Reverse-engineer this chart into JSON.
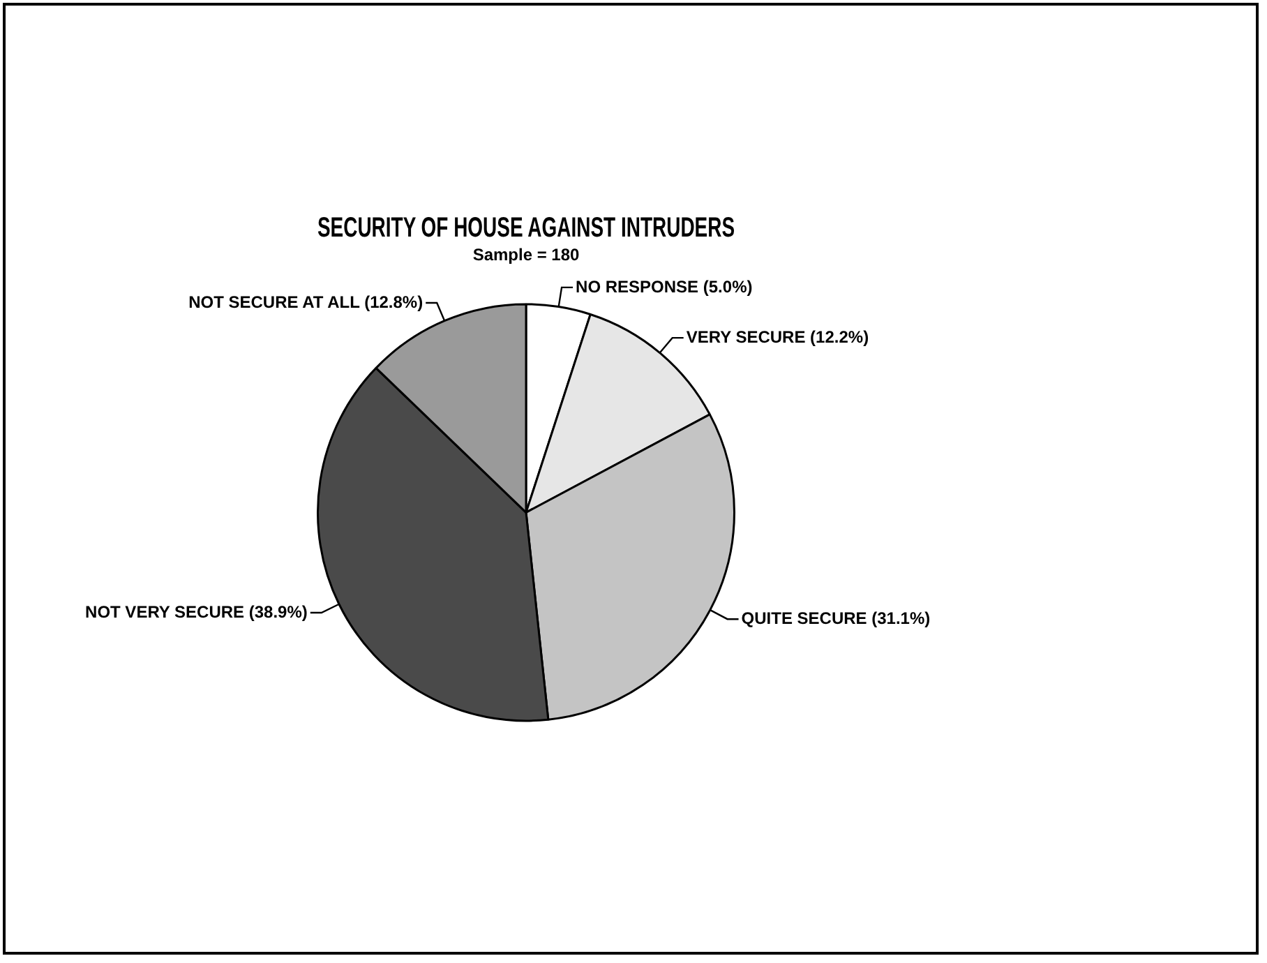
{
  "chart_data": {
    "type": "pie",
    "title": "SECURITY OF HOUSE AGAINST INTRUDERS",
    "subtitle": "Sample = 180",
    "categories": [
      "NO RESPONSE",
      "VERY SECURE",
      "QUITE SECURE",
      "NOT VERY SECURE",
      "NOT SECURE AT ALL"
    ],
    "values": [
      5.0,
      12.2,
      31.1,
      38.9,
      12.8
    ],
    "value_labels": [
      "(5.0%)",
      "(12.2%)",
      "(31.1%)",
      "(38.9%)",
      "(12.8%)"
    ],
    "colors": [
      "#ffffff",
      "#e6e6e6",
      "#c4c4c4",
      "#4a4a4a",
      "#9a9a9a"
    ],
    "legend": false
  }
}
